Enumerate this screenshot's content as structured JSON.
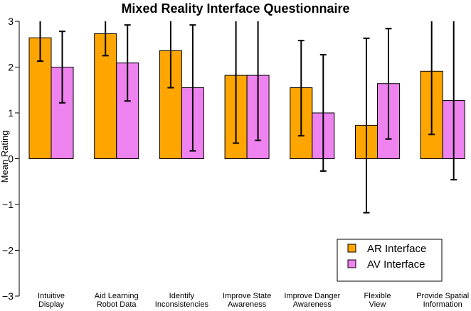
{
  "chart_data": {
    "type": "bar",
    "title": "Mixed Reality Interface Questionnaire",
    "xlabel": "",
    "ylabel": "Mean Rating",
    "ylim": [
      -3,
      3
    ],
    "yticks": [
      -3,
      -2,
      -1,
      0,
      1,
      2,
      3
    ],
    "grid": false,
    "legend_position": "bottom-right",
    "categories": [
      [
        "Intuitive",
        "Display"
      ],
      [
        "Aid Learning",
        "Robot Data"
      ],
      [
        "Identify",
        "Inconsistencies"
      ],
      [
        "Improve State",
        "Awareness"
      ],
      [
        "Improve Danger",
        "Awareness"
      ],
      [
        "Flexible",
        "View"
      ],
      [
        "Provide Spatial",
        "Information"
      ]
    ],
    "series": [
      {
        "name": "AR Interface",
        "color": "#ffa500",
        "values": [
          2.64,
          2.73,
          2.36,
          1.82,
          1.55,
          0.73,
          1.91
        ],
        "err_low": [
          2.13,
          2.25,
          1.55,
          0.34,
          0.5,
          -1.18,
          0.53
        ],
        "err_high": [
          3.0,
          3.0,
          3.0,
          3.0,
          2.58,
          2.63,
          3.0
        ]
      },
      {
        "name": "AV Interface",
        "color": "#ee82ee",
        "values": [
          2.0,
          2.09,
          1.55,
          1.82,
          1.0,
          1.64,
          1.27
        ],
        "err_low": [
          1.22,
          1.26,
          0.17,
          0.4,
          -0.27,
          0.43,
          -0.46
        ],
        "err_high": [
          2.78,
          2.92,
          2.92,
          3.0,
          2.27,
          2.84,
          3.0
        ]
      }
    ]
  }
}
